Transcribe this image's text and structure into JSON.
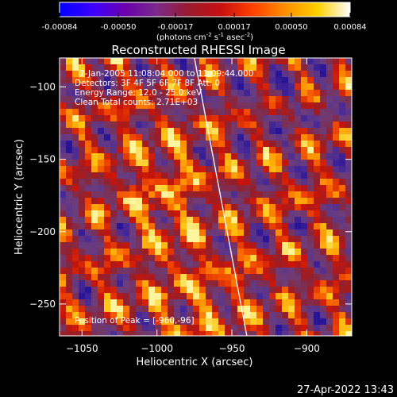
{
  "chart_data": {
    "type": "heatmap",
    "title": "Reconstructed RHESSI Image",
    "xlabel": "Heliocentric X (arcsec)",
    "ylabel": "Heliocentric Y (arcsec)",
    "xlim": [
      -1065,
      -870
    ],
    "ylim": [
      -272,
      -80
    ],
    "x_ticks": [
      -1050,
      -1000,
      -950,
      -900
    ],
    "y_ticks": [
      -100,
      -150,
      -200,
      -250
    ],
    "colorbar": {
      "range": [
        -0.00084,
        0.00084
      ],
      "ticks": [
        -0.00084,
        -0.0005,
        -0.00017,
        0.00017,
        0.0005,
        0.00084
      ],
      "tick_labels": [
        "-0.00084",
        "-0.00050",
        "-0.00017",
        "0.00017",
        "0.00050",
        "0.00084"
      ],
      "label_main": "(photons cm",
      "label_exp1": "-2",
      "label_mid1": " s",
      "label_exp2": "-1",
      "label_mid2": " asec",
      "label_exp3": "-2",
      "label_end": ")",
      "colors": [
        "#0000ff",
        "#3a00ff",
        "#6a00b0",
        "#7a2a8a",
        "#9a1a30",
        "#c81010",
        "#ff4000",
        "#ff9000",
        "#ffd000",
        "#ffffff"
      ]
    },
    "annotations": {
      "line1": "7-Jan-2005 11:08:04.000 to 11:09:44.000",
      "line2": "Detectors: 3F 4F 5F 6F 7F 8F  Att: 0",
      "line3": "Energy Range: 12.0 - 25.0 keV",
      "line4": "Clean     Total counts: 2.71E+03",
      "peak": "Position of Peak = [-960,-96]"
    },
    "limb_line": [
      [
        -975,
        -80
      ],
      [
        -940,
        -272
      ]
    ],
    "grid": false
  },
  "timestamp": "27-Apr-2022 13:43"
}
